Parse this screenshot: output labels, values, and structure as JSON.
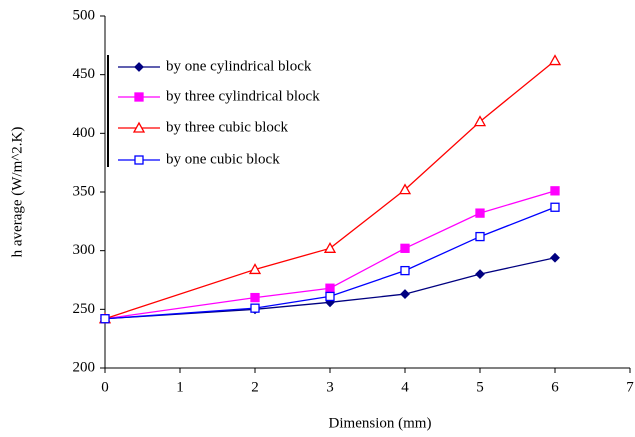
{
  "chart_data": {
    "type": "line",
    "x_label": "Dimension (mm)",
    "y_label": "h average (W/m^2.K)",
    "x": [
      0,
      2,
      3,
      4,
      5,
      6
    ],
    "series": [
      {
        "name": "by one cylindrical block",
        "color": "#000080",
        "marker": "diamond",
        "values": [
          242,
          250,
          256,
          263,
          280,
          294
        ]
      },
      {
        "name": "by three cylindrical block",
        "color": "#ff00ff",
        "marker": "filled-square",
        "values": [
          242,
          260,
          268,
          302,
          332,
          351
        ]
      },
      {
        "name": "by three cubic block",
        "color": "#ff0000",
        "marker": "open-triangle",
        "values": [
          242,
          284,
          302,
          352,
          410,
          462
        ]
      },
      {
        "name": "by one cubic block",
        "color": "#0000ff",
        "marker": "open-square",
        "values": [
          242,
          251,
          261,
          283,
          312,
          337
        ]
      }
    ],
    "xlim": [
      0,
      7
    ],
    "xticks": [
      0,
      1,
      2,
      3,
      4,
      5,
      6,
      7
    ],
    "ylim": [
      200,
      500
    ],
    "yticks": [
      200,
      250,
      300,
      350,
      400,
      450,
      500
    ],
    "legend": "upper left"
  }
}
